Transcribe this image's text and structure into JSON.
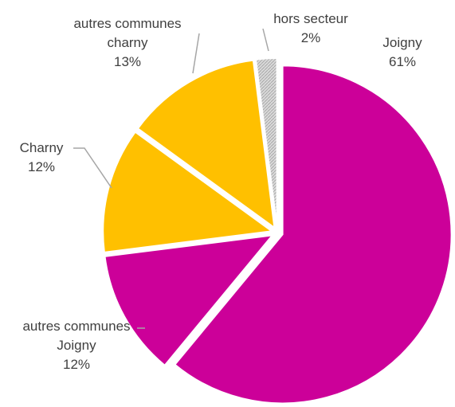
{
  "chart_data": {
    "type": "pie",
    "categories": [
      "Joigny",
      "autres communes Joigny",
      "Charny",
      "autres communes charny",
      "hors secteur"
    ],
    "values": [
      61,
      12,
      12,
      13,
      2
    ],
    "value_labels": [
      "61%",
      "12%",
      "12%",
      "13%",
      "2%"
    ],
    "colors": [
      "#cc0099",
      "#cc0099",
      "#ffc000",
      "#ffc000",
      "#d9d9d9"
    ]
  }
}
